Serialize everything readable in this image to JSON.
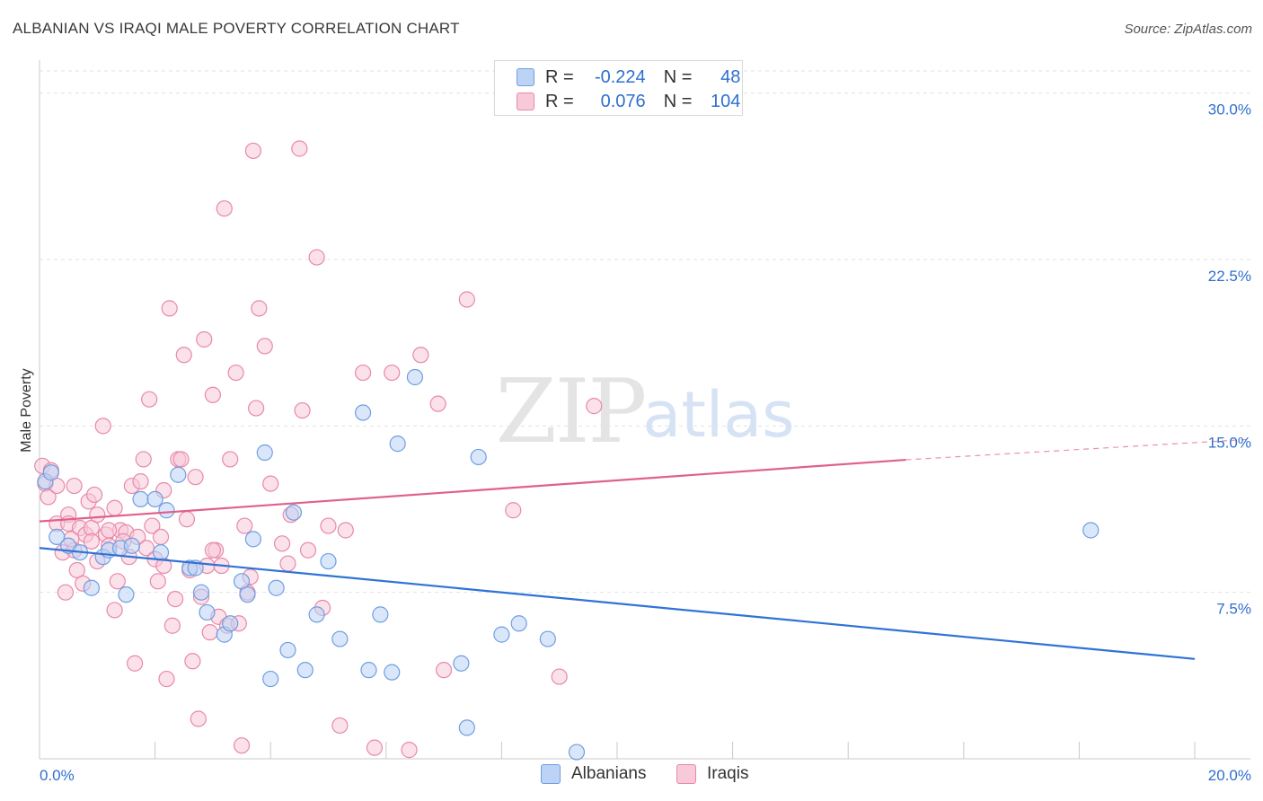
{
  "header": {
    "title": "ALBANIAN VS IRAQI MALE POVERTY CORRELATION CHART",
    "source": "Source: ZipAtlas.com"
  },
  "legend": {
    "albanians": {
      "r_label": "R =",
      "r_value": "-0.224",
      "n_label": "N =",
      "n_value": "48"
    },
    "iraqis": {
      "r_label": "R =",
      "r_value": "0.076",
      "n_label": "N =",
      "n_value": "104"
    }
  },
  "bottom_legend": {
    "albanians": "Albanians",
    "iraqis": "Iraqis"
  },
  "watermark": {
    "zip": "ZIP",
    "atlas": "atlas"
  },
  "colors": {
    "blue_fill": "#bcd3f5",
    "blue_stroke": "#6f9ee0",
    "blue_line": "#2f73d6",
    "pink_fill": "#f8c9d8",
    "pink_stroke": "#e889a8",
    "pink_line": "#e0608e",
    "axis_label": "#2f6fcf",
    "grid": "#e2e2e2"
  },
  "chart_data": {
    "type": "scatter",
    "title": "ALBANIAN VS IRAQI MALE POVERTY CORRELATION CHART",
    "xlabel": "",
    "ylabel": "Male Poverty",
    "xlim": [
      0,
      20
    ],
    "ylim": [
      0,
      31
    ],
    "x_tick_labels": [
      {
        "value": 0,
        "label": "0.0%"
      },
      {
        "value": 20,
        "label": "20.0%"
      }
    ],
    "y_tick_labels": [
      {
        "value": 7.5,
        "label": "7.5%"
      },
      {
        "value": 15,
        "label": "15.0%"
      },
      {
        "value": 22.5,
        "label": "22.5%"
      },
      {
        "value": 30,
        "label": "30.0%"
      }
    ],
    "x_minor_ticks": [
      0,
      2,
      4,
      6,
      8,
      10,
      12,
      14,
      16,
      18,
      20
    ],
    "grid": true,
    "series": [
      {
        "name": "Albanians",
        "r": -0.224,
        "n": 48,
        "trend": {
          "x": [
            0,
            20
          ],
          "y": [
            9.5,
            4.5
          ],
          "dashed_from": null
        },
        "points": [
          [
            0.1,
            12.5
          ],
          [
            0.2,
            12.9
          ],
          [
            0.3,
            10.0
          ],
          [
            0.5,
            9.6
          ],
          [
            0.7,
            9.3
          ],
          [
            0.9,
            7.7
          ],
          [
            1.1,
            9.1
          ],
          [
            1.2,
            9.4
          ],
          [
            1.4,
            9.5
          ],
          [
            1.5,
            7.4
          ],
          [
            1.6,
            9.6
          ],
          [
            1.75,
            11.7
          ],
          [
            2.0,
            11.7
          ],
          [
            2.1,
            9.3
          ],
          [
            2.2,
            11.2
          ],
          [
            2.4,
            12.8
          ],
          [
            2.6,
            8.6
          ],
          [
            2.7,
            8.6
          ],
          [
            2.8,
            7.5
          ],
          [
            2.9,
            6.6
          ],
          [
            3.2,
            5.6
          ],
          [
            3.3,
            6.1
          ],
          [
            3.5,
            8.0
          ],
          [
            3.6,
            7.4
          ],
          [
            3.7,
            9.9
          ],
          [
            3.9,
            13.8
          ],
          [
            4.0,
            3.6
          ],
          [
            4.1,
            7.7
          ],
          [
            4.3,
            4.9
          ],
          [
            4.4,
            11.1
          ],
          [
            4.6,
            4.0
          ],
          [
            4.8,
            6.5
          ],
          [
            5.0,
            8.9
          ],
          [
            5.2,
            5.4
          ],
          [
            5.6,
            15.6
          ],
          [
            5.7,
            4.0
          ],
          [
            5.9,
            6.5
          ],
          [
            6.1,
            3.9
          ],
          [
            6.2,
            14.2
          ],
          [
            6.5,
            17.2
          ],
          [
            7.3,
            4.3
          ],
          [
            7.4,
            1.4
          ],
          [
            7.6,
            13.6
          ],
          [
            8.0,
            5.6
          ],
          [
            8.3,
            6.1
          ],
          [
            8.8,
            5.4
          ],
          [
            9.3,
            0.3
          ],
          [
            18.2,
            10.3
          ]
        ]
      },
      {
        "name": "Iraqis",
        "r": 0.076,
        "n": 104,
        "trend": {
          "x": [
            0,
            20
          ],
          "y": [
            10.7,
            14.4
          ],
          "dashed_from": 15
        },
        "points": [
          [
            0.05,
            13.2
          ],
          [
            0.1,
            12.4
          ],
          [
            0.15,
            11.8
          ],
          [
            0.2,
            13.0
          ],
          [
            0.3,
            12.3
          ],
          [
            0.3,
            10.6
          ],
          [
            0.4,
            9.3
          ],
          [
            0.45,
            7.5
          ],
          [
            0.5,
            11.0
          ],
          [
            0.5,
            10.6
          ],
          [
            0.6,
            12.3
          ],
          [
            0.6,
            9.4
          ],
          [
            0.65,
            8.5
          ],
          [
            0.7,
            10.4
          ],
          [
            0.75,
            7.9
          ],
          [
            0.8,
            10.1
          ],
          [
            0.85,
            11.6
          ],
          [
            0.9,
            10.4
          ],
          [
            0.9,
            9.8
          ],
          [
            0.95,
            11.9
          ],
          [
            1.0,
            11.0
          ],
          [
            1.0,
            8.9
          ],
          [
            1.1,
            15.0
          ],
          [
            1.15,
            10.1
          ],
          [
            1.2,
            9.6
          ],
          [
            1.3,
            6.7
          ],
          [
            1.3,
            11.3
          ],
          [
            1.35,
            8.0
          ],
          [
            1.4,
            10.3
          ],
          [
            1.5,
            10.2
          ],
          [
            1.55,
            9.1
          ],
          [
            1.6,
            12.3
          ],
          [
            1.65,
            4.3
          ],
          [
            1.7,
            10.0
          ],
          [
            1.75,
            12.5
          ],
          [
            1.8,
            13.5
          ],
          [
            1.85,
            9.5
          ],
          [
            1.9,
            16.2
          ],
          [
            1.95,
            10.5
          ],
          [
            2.0,
            9.0
          ],
          [
            2.05,
            8.0
          ],
          [
            2.1,
            10.0
          ],
          [
            2.15,
            12.1
          ],
          [
            2.2,
            3.6
          ],
          [
            2.25,
            20.3
          ],
          [
            2.3,
            6.0
          ],
          [
            2.35,
            7.2
          ],
          [
            2.4,
            13.5
          ],
          [
            2.45,
            13.5
          ],
          [
            2.5,
            18.2
          ],
          [
            2.55,
            10.8
          ],
          [
            2.6,
            8.5
          ],
          [
            2.65,
            4.4
          ],
          [
            2.7,
            12.7
          ],
          [
            2.75,
            1.8
          ],
          [
            2.8,
            7.3
          ],
          [
            2.85,
            18.9
          ],
          [
            2.9,
            8.7
          ],
          [
            2.95,
            5.7
          ],
          [
            3.0,
            16.4
          ],
          [
            3.05,
            9.4
          ],
          [
            3.1,
            6.4
          ],
          [
            3.15,
            8.7
          ],
          [
            3.2,
            24.8
          ],
          [
            3.25,
            6.0
          ],
          [
            3.3,
            13.5
          ],
          [
            3.4,
            17.4
          ],
          [
            3.45,
            6.1
          ],
          [
            3.5,
            0.6
          ],
          [
            3.55,
            10.5
          ],
          [
            3.6,
            7.5
          ],
          [
            3.65,
            8.2
          ],
          [
            3.7,
            27.4
          ],
          [
            3.75,
            15.8
          ],
          [
            3.8,
            20.3
          ],
          [
            3.9,
            18.6
          ],
          [
            4.0,
            12.4
          ],
          [
            4.2,
            9.7
          ],
          [
            4.3,
            8.8
          ],
          [
            4.35,
            11.0
          ],
          [
            4.5,
            27.5
          ],
          [
            4.55,
            15.7
          ],
          [
            4.65,
            9.4
          ],
          [
            4.8,
            22.6
          ],
          [
            4.9,
            6.8
          ],
          [
            5.0,
            10.5
          ],
          [
            5.2,
            1.5
          ],
          [
            5.3,
            10.3
          ],
          [
            5.6,
            17.4
          ],
          [
            5.8,
            0.5
          ],
          [
            6.1,
            17.4
          ],
          [
            6.4,
            0.4
          ],
          [
            6.6,
            18.2
          ],
          [
            6.9,
            16.0
          ],
          [
            7.0,
            4.0
          ],
          [
            7.4,
            20.7
          ],
          [
            8.2,
            11.2
          ],
          [
            9.0,
            3.7
          ],
          [
            9.6,
            15.9
          ],
          [
            1.2,
            10.3
          ],
          [
            0.55,
            9.9
          ],
          [
            2.15,
            8.7
          ],
          [
            3.0,
            9.4
          ],
          [
            1.45,
            9.8
          ]
        ]
      }
    ]
  }
}
